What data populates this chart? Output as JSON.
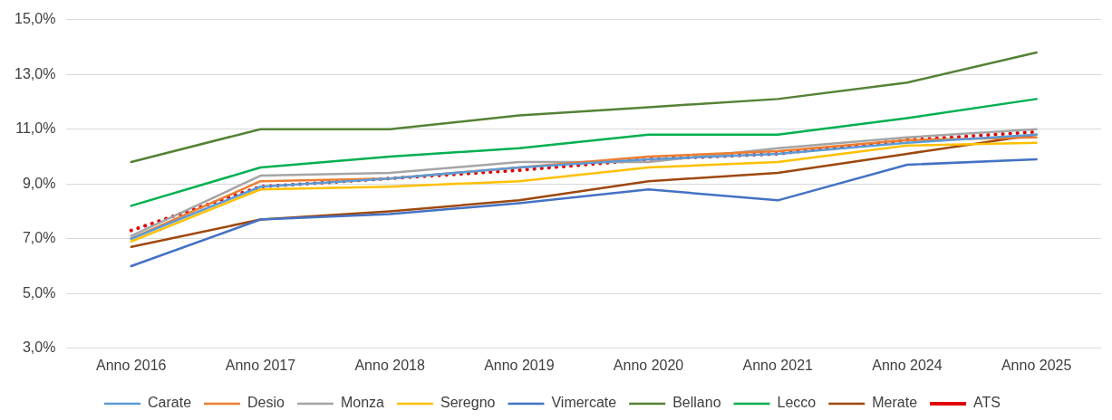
{
  "chart_data": {
    "type": "line",
    "categories": [
      "Anno 2016",
      "Anno 2017",
      "Anno 2018",
      "Anno 2019",
      "Anno 2020",
      "Anno 2021",
      "Anno 2024",
      "Anno 2025"
    ],
    "series": [
      {
        "name": "Carate",
        "color": "#5b9bd5",
        "values": [
          7.0,
          8.9,
          9.2,
          9.6,
          9.9,
          10.1,
          10.5,
          10.8
        ]
      },
      {
        "name": "Desio",
        "color": "#ed7d31",
        "values": [
          7.0,
          9.1,
          9.2,
          9.6,
          10.0,
          10.2,
          10.6,
          10.7
        ]
      },
      {
        "name": "Monza",
        "color": "#a5a5a5",
        "values": [
          7.1,
          9.3,
          9.4,
          9.8,
          9.8,
          10.3,
          10.7,
          11.0
        ]
      },
      {
        "name": "Seregno",
        "color": "#ffc000",
        "values": [
          6.9,
          8.8,
          8.9,
          9.1,
          9.6,
          9.8,
          10.4,
          10.5
        ]
      },
      {
        "name": "Vimercate",
        "color": "#4472c4",
        "values": [
          6.0,
          7.7,
          7.9,
          8.3,
          8.8,
          8.4,
          9.7,
          9.9
        ]
      },
      {
        "name": "Bellano",
        "color": "#548235",
        "values": [
          9.8,
          11.0,
          11.0,
          11.5,
          11.8,
          12.1,
          12.7,
          13.8
        ]
      },
      {
        "name": "Lecco",
        "color": "#00b050",
        "values": [
          8.2,
          9.6,
          10.0,
          10.3,
          10.8,
          10.8,
          11.4,
          12.1
        ]
      },
      {
        "name": "Merate",
        "color": "#9e480e",
        "values": [
          6.7,
          7.7,
          8.0,
          8.4,
          9.1,
          9.4,
          10.1,
          10.8
        ]
      },
      {
        "name": "ATS",
        "color": "#e00000",
        "line_style": "dotted",
        "values": [
          7.3,
          8.9,
          9.2,
          9.5,
          9.9,
          10.1,
          10.6,
          10.9
        ]
      }
    ],
    "ylim": [
      3,
      15
    ],
    "yticks": [
      {
        "value": 3,
        "label": "3,0%"
      },
      {
        "value": 5,
        "label": "5,0%"
      },
      {
        "value": 7,
        "label": "7,0%"
      },
      {
        "value": 9,
        "label": "9,0%"
      },
      {
        "value": 11,
        "label": "11,0%"
      },
      {
        "value": 13,
        "label": "13,0%"
      },
      {
        "value": 15,
        "label": "15,0%"
      }
    ],
    "grid": "y",
    "legend": "bottom",
    "marker": "none",
    "line_style": "solid"
  }
}
